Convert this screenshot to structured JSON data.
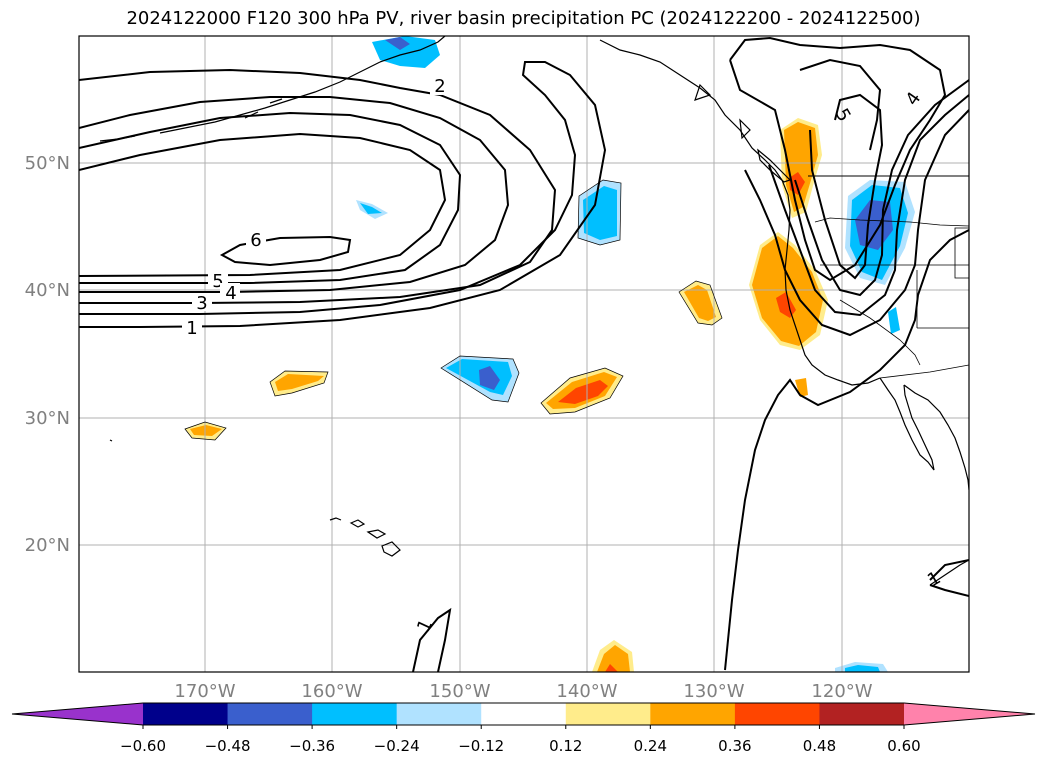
{
  "title": "2024122000 F120 300 hPa PV, river basin precipitation PC (2024122200 - 2024122500)",
  "map": {
    "lat_labels": [
      "50°N",
      "40°N",
      "30°N",
      "20°N"
    ],
    "lon_labels": [
      "170°W",
      "160°W",
      "150°W",
      "140°W",
      "130°W",
      "120°W"
    ],
    "contour_labels": [
      "2",
      "6",
      "5",
      "4",
      "3",
      "1",
      "1",
      "1",
      "4",
      "5"
    ]
  },
  "colorbar": {
    "colors": [
      "#9932CC",
      "#00008B",
      "#3A5FCD",
      "#00BFFF",
      "#B0E2FF",
      "#FFFFFF",
      "#FFEC8B",
      "#FFA500",
      "#FF4500",
      "#B22222",
      "#FF82AB"
    ],
    "tick_labels": [
      "−0.60",
      "−0.48",
      "−0.36",
      "−0.24",
      "−0.12",
      "0.12",
      "0.24",
      "0.36",
      "0.48",
      "0.60"
    ]
  }
}
